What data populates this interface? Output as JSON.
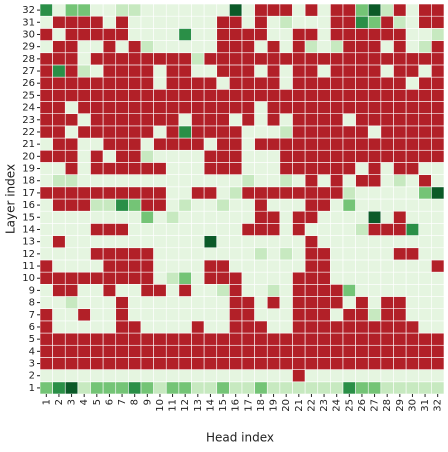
{
  "chart_data": {
    "type": "heatmap",
    "xlabel": "Head index",
    "ylabel": "Layer index",
    "x": [
      1,
      2,
      3,
      4,
      5,
      6,
      7,
      8,
      9,
      10,
      11,
      12,
      13,
      14,
      15,
      16,
      17,
      18,
      19,
      20,
      21,
      22,
      23,
      24,
      25,
      26,
      27,
      28,
      29,
      30,
      31,
      32
    ],
    "y": [
      1,
      2,
      3,
      4,
      5,
      6,
      7,
      8,
      9,
      10,
      11,
      12,
      13,
      14,
      15,
      16,
      17,
      18,
      19,
      20,
      21,
      22,
      23,
      24,
      25,
      26,
      27,
      28,
      29,
      30,
      31,
      32
    ],
    "colors": [
      "#b22028",
      "#e5f5e0",
      "#c7e9c0",
      "#74c476",
      "#2a8f47",
      "#0b5a28"
    ],
    "z": [
      [
        3,
        4,
        5,
        2,
        3,
        3,
        3,
        4,
        3,
        2,
        3,
        3,
        2,
        2,
        3,
        2,
        2,
        3,
        2,
        2,
        2,
        2,
        2,
        2,
        4,
        3,
        3,
        2,
        2,
        2,
        2,
        2
      ],
      [
        1,
        1,
        1,
        1,
        1,
        1,
        1,
        1,
        1,
        1,
        1,
        1,
        1,
        1,
        1,
        1,
        1,
        1,
        1,
        1,
        0,
        1,
        1,
        1,
        1,
        1,
        1,
        1,
        1,
        1,
        1,
        1
      ],
      [
        0,
        0,
        0,
        0,
        0,
        0,
        0,
        0,
        0,
        0,
        0,
        0,
        0,
        0,
        0,
        0,
        0,
        0,
        0,
        0,
        0,
        0,
        0,
        0,
        0,
        0,
        0,
        0,
        0,
        0,
        0,
        0
      ],
      [
        0,
        0,
        0,
        0,
        0,
        0,
        0,
        0,
        0,
        0,
        0,
        0,
        0,
        0,
        0,
        0,
        0,
        0,
        0,
        0,
        0,
        0,
        0,
        0,
        0,
        0,
        0,
        0,
        0,
        0,
        0,
        0
      ],
      [
        0,
        0,
        0,
        0,
        0,
        0,
        0,
        0,
        0,
        0,
        0,
        0,
        0,
        0,
        0,
        0,
        0,
        0,
        0,
        0,
        0,
        0,
        0,
        0,
        0,
        0,
        0,
        0,
        0,
        0,
        0,
        0
      ],
      [
        0,
        1,
        1,
        1,
        1,
        1,
        0,
        0,
        1,
        1,
        1,
        1,
        0,
        1,
        1,
        0,
        0,
        0,
        1,
        1,
        0,
        0,
        0,
        0,
        0,
        0,
        0,
        0,
        0,
        0,
        1,
        1
      ],
      [
        0,
        1,
        1,
        0,
        1,
        1,
        0,
        1,
        1,
        1,
        1,
        1,
        1,
        1,
        1,
        0,
        0,
        1,
        1,
        1,
        0,
        0,
        0,
        1,
        0,
        0,
        2,
        0,
        0,
        1,
        1,
        1
      ],
      [
        1,
        1,
        2,
        1,
        1,
        1,
        0,
        1,
        1,
        1,
        1,
        1,
        1,
        1,
        1,
        0,
        0,
        1,
        0,
        1,
        0,
        0,
        0,
        0,
        1,
        0,
        1,
        0,
        0,
        1,
        1,
        1
      ],
      [
        1,
        0,
        0,
        1,
        1,
        0,
        1,
        1,
        0,
        0,
        1,
        0,
        1,
        1,
        2,
        0,
        1,
        1,
        2,
        1,
        0,
        0,
        0,
        0,
        3,
        1,
        1,
        1,
        1,
        1,
        1,
        1
      ],
      [
        0,
        0,
        0,
        0,
        0,
        0,
        0,
        0,
        0,
        1,
        2,
        3,
        1,
        0,
        0,
        0,
        1,
        1,
        1,
        1,
        0,
        0,
        0,
        1,
        1,
        1,
        1,
        1,
        1,
        1,
        1,
        1
      ],
      [
        0,
        1,
        1,
        1,
        1,
        0,
        0,
        0,
        0,
        1,
        1,
        1,
        1,
        0,
        0,
        1,
        1,
        1,
        1,
        1,
        1,
        0,
        0,
        1,
        1,
        1,
        1,
        1,
        1,
        1,
        1,
        0
      ],
      [
        1,
        1,
        1,
        1,
        0,
        0,
        0,
        0,
        0,
        1,
        1,
        1,
        1,
        1,
        1,
        1,
        1,
        2,
        1,
        2,
        1,
        0,
        0,
        1,
        1,
        1,
        1,
        1,
        0,
        0,
        1,
        1
      ],
      [
        1,
        0,
        1,
        1,
        1,
        1,
        1,
        1,
        1,
        1,
        1,
        1,
        1,
        5,
        1,
        1,
        1,
        1,
        1,
        1,
        1,
        0,
        1,
        1,
        1,
        1,
        1,
        1,
        1,
        1,
        1,
        1
      ],
      [
        1,
        1,
        1,
        1,
        0,
        0,
        0,
        1,
        1,
        1,
        1,
        1,
        1,
        1,
        1,
        1,
        0,
        0,
        0,
        1,
        0,
        1,
        1,
        1,
        1,
        2,
        0,
        0,
        0,
        4,
        1,
        1
      ],
      [
        1,
        1,
        1,
        1,
        1,
        1,
        1,
        1,
        3,
        1,
        2,
        1,
        1,
        1,
        1,
        1,
        1,
        0,
        0,
        1,
        0,
        0,
        1,
        1,
        1,
        1,
        5,
        1,
        0,
        1,
        1,
        1
      ],
      [
        1,
        0,
        0,
        0,
        2,
        2,
        4,
        3,
        0,
        0,
        1,
        2,
        1,
        1,
        2,
        1,
        1,
        0,
        1,
        1,
        1,
        0,
        0,
        1,
        3,
        1,
        1,
        1,
        1,
        1,
        1,
        1
      ],
      [
        0,
        0,
        0,
        0,
        0,
        0,
        0,
        0,
        0,
        0,
        1,
        1,
        0,
        0,
        1,
        2,
        0,
        0,
        0,
        0,
        0,
        0,
        0,
        0,
        2,
        1,
        1,
        1,
        1,
        1,
        3,
        5
      ],
      [
        1,
        2,
        2,
        1,
        1,
        1,
        1,
        1,
        1,
        1,
        1,
        1,
        1,
        1,
        1,
        1,
        2,
        1,
        1,
        2,
        1,
        0,
        1,
        0,
        1,
        0,
        0,
        1,
        2,
        1,
        0,
        1
      ],
      [
        1,
        1,
        0,
        1,
        0,
        0,
        0,
        0,
        0,
        0,
        1,
        1,
        1,
        0,
        0,
        0,
        1,
        1,
        1,
        0,
        0,
        0,
        0,
        0,
        0,
        1,
        0,
        1,
        0,
        0,
        1,
        1
      ],
      [
        0,
        0,
        0,
        1,
        0,
        1,
        0,
        0,
        2,
        1,
        1,
        1,
        1,
        0,
        0,
        0,
        1,
        1,
        1,
        0,
        0,
        0,
        0,
        0,
        0,
        0,
        0,
        0,
        0,
        0,
        0,
        0
      ],
      [
        1,
        0,
        0,
        1,
        1,
        0,
        0,
        0,
        1,
        0,
        0,
        0,
        0,
        1,
        0,
        0,
        1,
        0,
        0,
        0,
        0,
        0,
        0,
        0,
        0,
        0,
        0,
        0,
        0,
        0,
        0,
        0
      ],
      [
        0,
        0,
        1,
        0,
        0,
        0,
        0,
        0,
        0,
        1,
        0,
        4,
        0,
        0,
        0,
        0,
        1,
        1,
        1,
        2,
        0,
        0,
        0,
        0,
        0,
        0,
        1,
        0,
        0,
        0,
        0,
        0
      ],
      [
        0,
        0,
        0,
        1,
        0,
        0,
        0,
        0,
        0,
        0,
        0,
        1,
        0,
        0,
        0,
        1,
        0,
        1,
        0,
        1,
        0,
        0,
        0,
        0,
        1,
        0,
        0,
        0,
        0,
        0,
        0,
        0
      ],
      [
        0,
        0,
        1,
        0,
        0,
        0,
        0,
        0,
        0,
        0,
        0,
        0,
        0,
        0,
        0,
        0,
        0,
        1,
        0,
        0,
        0,
        0,
        0,
        0,
        0,
        0,
        0,
        0,
        0,
        0,
        0,
        0
      ],
      [
        0,
        0,
        0,
        0,
        0,
        0,
        0,
        0,
        0,
        0,
        0,
        0,
        0,
        0,
        0,
        0,
        0,
        0,
        0,
        0,
        0,
        0,
        0,
        0,
        0,
        0,
        0,
        0,
        0,
        0,
        0,
        0
      ],
      [
        0,
        0,
        0,
        0,
        0,
        0,
        0,
        0,
        0,
        1,
        0,
        0,
        0,
        0,
        1,
        0,
        0,
        0,
        0,
        1,
        0,
        0,
        0,
        0,
        0,
        0,
        0,
        0,
        0,
        1,
        0,
        0
      ],
      [
        0,
        4,
        0,
        2,
        1,
        0,
        0,
        0,
        0,
        1,
        0,
        0,
        1,
        1,
        0,
        0,
        0,
        1,
        0,
        1,
        0,
        0,
        1,
        0,
        0,
        0,
        0,
        1,
        0,
        0,
        1,
        0
      ],
      [
        0,
        0,
        0,
        1,
        0,
        0,
        0,
        0,
        0,
        0,
        0,
        0,
        2,
        0,
        0,
        0,
        0,
        0,
        0,
        0,
        0,
        0,
        0,
        0,
        0,
        0,
        0,
        0,
        0,
        0,
        0,
        0
      ],
      [
        1,
        0,
        0,
        1,
        1,
        0,
        1,
        0,
        2,
        1,
        1,
        1,
        1,
        1,
        0,
        0,
        0,
        1,
        0,
        1,
        0,
        2,
        1,
        2,
        0,
        0,
        0,
        1,
        0,
        1,
        2,
        0
      ],
      [
        0,
        1,
        0,
        0,
        0,
        0,
        0,
        1,
        1,
        1,
        1,
        4,
        1,
        1,
        0,
        0,
        0,
        0,
        1,
        1,
        0,
        0,
        1,
        0,
        0,
        0,
        0,
        0,
        0,
        1,
        1,
        2
      ],
      [
        1,
        0,
        0,
        0,
        0,
        1,
        0,
        1,
        1,
        1,
        1,
        1,
        1,
        1,
        0,
        0,
        1,
        0,
        1,
        2,
        1,
        1,
        1,
        0,
        0,
        4,
        3,
        0,
        2,
        1,
        0,
        0
      ],
      [
        4,
        1,
        3,
        3,
        1,
        1,
        2,
        2,
        1,
        1,
        1,
        1,
        1,
        1,
        1,
        5,
        1,
        0,
        0,
        0,
        1,
        0,
        1,
        0,
        0,
        3,
        5,
        2,
        0,
        1,
        0,
        0
      ]
    ]
  }
}
